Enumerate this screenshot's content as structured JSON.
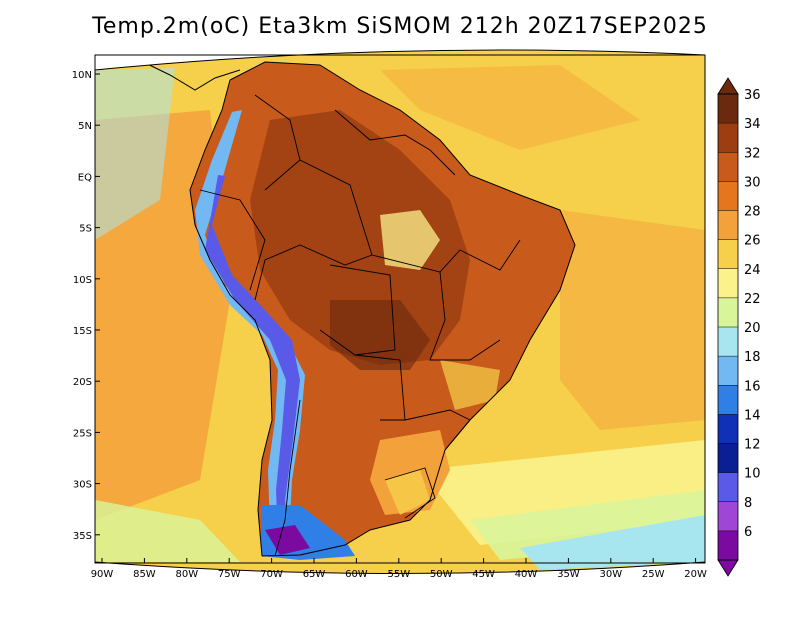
{
  "title": "Temp.2m(oC) Eta3km SiSMOM 212h 20Z17SEP2025",
  "map": {
    "lat_labels": [
      "10N",
      "5N",
      "EQ",
      "5S",
      "10S",
      "15S",
      "20S",
      "25S",
      "30S",
      "35S"
    ],
    "lon_labels": [
      "90W",
      "85W",
      "80W",
      "75W",
      "70W",
      "65W",
      "60W",
      "55W",
      "50W",
      "45W",
      "40W",
      "35W",
      "30W",
      "25W",
      "20W"
    ],
    "colors": {
      "ocean_warm": "#f6d04a",
      "ocean_mid": "#f3a13b",
      "land_hot": "#c85a1c",
      "land_veryhot": "#9c3e12",
      "andes_cold": "#5a6ee6",
      "boundary": "#000000"
    }
  },
  "colorbar": {
    "labels": [
      "36",
      "34",
      "32",
      "30",
      "28",
      "26",
      "24",
      "22",
      "20",
      "18",
      "16",
      "14",
      "12",
      "10",
      "8",
      "6"
    ],
    "colors": [
      "#6b2a0e",
      "#9c3e12",
      "#c85a1c",
      "#e6761e",
      "#f3a13b",
      "#f6d04a",
      "#fbf28c",
      "#d9f59a",
      "#a8e6ef",
      "#72b8f2",
      "#2f7fe6",
      "#1130b8",
      "#0a1f94",
      "#5a5ae8",
      "#a046d6",
      "#7a0aa0"
    ]
  }
}
